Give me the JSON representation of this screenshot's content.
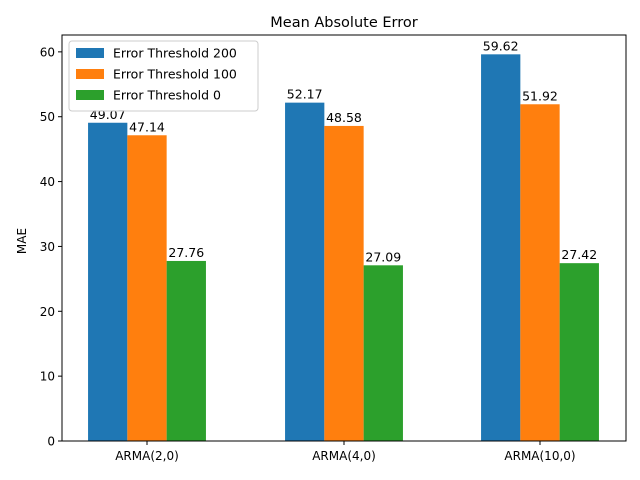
{
  "chart_data": {
    "type": "bar",
    "title": "Mean Absolute Error",
    "xlabel": "",
    "ylabel": "MAE",
    "categories": [
      "ARMA(2,0)",
      "ARMA(4,0)",
      "ARMA(10,0)"
    ],
    "series": [
      {
        "name": "Error Threshold 200",
        "color": "#1f77b4",
        "values": [
          49.07,
          52.17,
          59.62
        ],
        "labels": [
          "49.07",
          "52.17",
          "59.62"
        ]
      },
      {
        "name": "Error Threshold 100",
        "color": "#ff7f0e",
        "values": [
          47.14,
          48.58,
          51.92
        ],
        "labels": [
          "47.14",
          "48.58",
          "51.92"
        ]
      },
      {
        "name": "Error Threshold 0",
        "color": "#2ca02c",
        "values": [
          27.76,
          27.09,
          27.42
        ],
        "labels": [
          "27.76",
          "27.09",
          "27.42"
        ]
      }
    ],
    "ylim": [
      0,
      62.6
    ],
    "yticks": [
      0,
      10,
      20,
      30,
      40,
      50,
      60
    ],
    "ytick_labels": [
      "0",
      "10",
      "20",
      "30",
      "40",
      "50",
      "60"
    ],
    "grid": false,
    "legend_position": "upper-left"
  }
}
